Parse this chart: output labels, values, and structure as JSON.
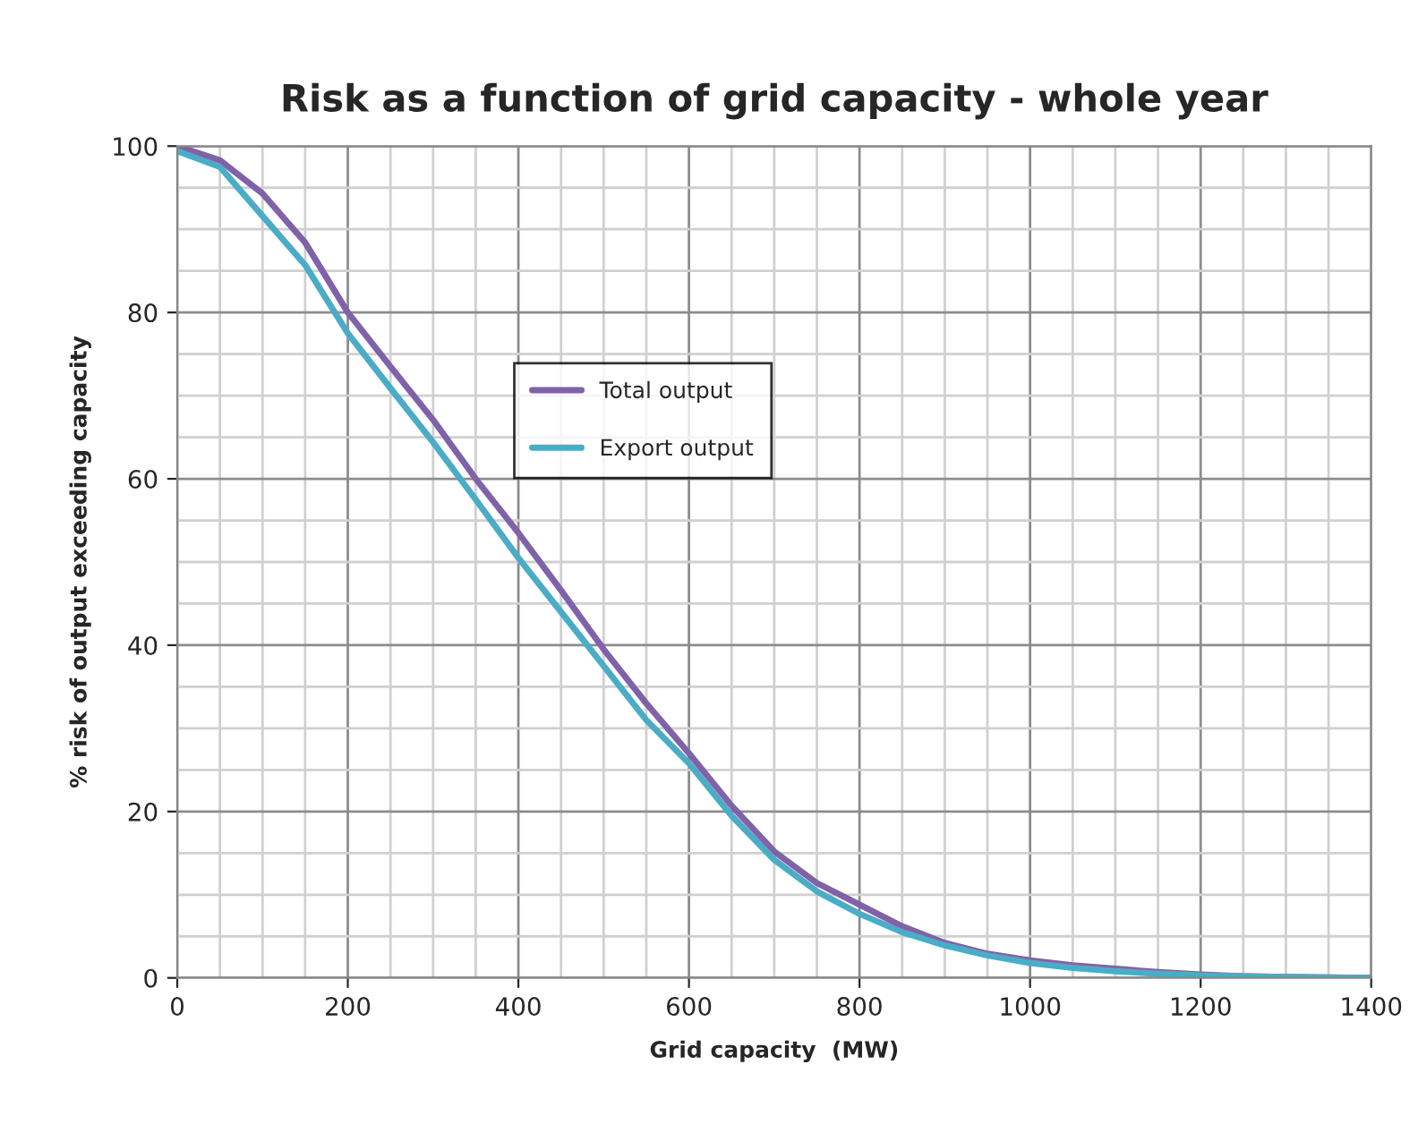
{
  "chart_data": {
    "type": "line",
    "title": "Risk as a function of grid capacity - whole year",
    "xlabel": "Grid capacity  (MW)",
    "ylabel": "% risk of output exceeding capacity",
    "x": [
      0,
      50,
      100,
      150,
      200,
      250,
      300,
      350,
      400,
      450,
      500,
      550,
      600,
      650,
      700,
      750,
      800,
      850,
      900,
      950,
      1000,
      1050,
      1100,
      1150,
      1200,
      1250,
      1300,
      1400
    ],
    "series": [
      {
        "name": "Total output",
        "color": "#7f62a8",
        "values": [
          100,
          98.3,
          94.3,
          88.4,
          80,
          73.5,
          67.1,
          60,
          53.5,
          46.6,
          39.5,
          33,
          27,
          20.7,
          15.2,
          11.4,
          8.8,
          6.2,
          4.2,
          2.9,
          2.1,
          1.5,
          1.1,
          0.7,
          0.4,
          0.2,
          0.1,
          0
        ]
      },
      {
        "name": "Export output",
        "color": "#4bacc6",
        "values": [
          99.4,
          97.5,
          91.6,
          85.7,
          77.5,
          70.9,
          64.4,
          57.5,
          50.5,
          44,
          37.5,
          31,
          25.8,
          19.5,
          14.2,
          10.4,
          7.7,
          5.5,
          3.9,
          2.7,
          1.8,
          1.2,
          0.8,
          0.5,
          0.3,
          0.2,
          0.1,
          0
        ]
      }
    ],
    "xlim": [
      0,
      1400
    ],
    "xticks": [
      0,
      200,
      400,
      600,
      800,
      1000,
      1200,
      1400
    ],
    "ylim": [
      0,
      100
    ],
    "yticks": [
      0,
      20,
      40,
      60,
      80,
      100
    ],
    "grid": true,
    "legend": "center",
    "marker": "none",
    "line_style": "solid"
  }
}
